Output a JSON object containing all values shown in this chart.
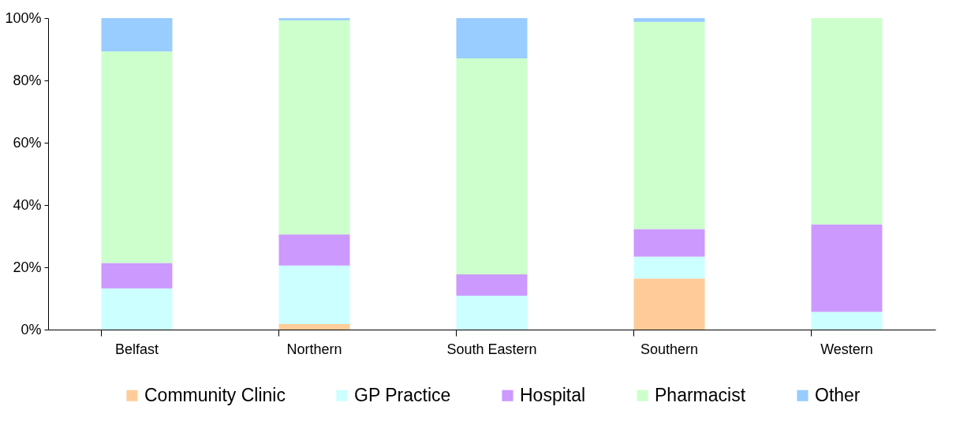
{
  "chart_data": {
    "type": "bar",
    "stacked": true,
    "categories": [
      "Belfast",
      "Northern",
      "South Eastern",
      "Southern",
      "Western"
    ],
    "series": [
      {
        "name": "Community Clinic",
        "color": "#ffcc99",
        "values": [
          0,
          1.8,
          0,
          16.4,
          0
        ]
      },
      {
        "name": "GP Practice",
        "color": "#ccffff",
        "values": [
          13.2,
          18.8,
          10.9,
          7.0,
          5.7
        ]
      },
      {
        "name": "Hospital",
        "color": "#cc99ff",
        "values": [
          8.2,
          10.0,
          6.8,
          8.9,
          28.1
        ]
      },
      {
        "name": "Pharmacist",
        "color": "#ccffcc",
        "values": [
          67.9,
          68.7,
          69.4,
          66.5,
          66.2
        ]
      },
      {
        "name": "Other",
        "color": "#99ccff",
        "values": [
          10.7,
          0.7,
          12.9,
          1.2,
          0
        ]
      }
    ],
    "ylim": [
      0,
      100
    ],
    "yticks": [
      {
        "value": 0,
        "label": "0%"
      },
      {
        "value": 20,
        "label": "20%"
      },
      {
        "value": 40,
        "label": "40%"
      },
      {
        "value": 60,
        "label": "60%"
      },
      {
        "value": 80,
        "label": "80%"
      },
      {
        "value": 100,
        "label": "100%"
      }
    ],
    "grid": false,
    "legend": "bottom"
  }
}
